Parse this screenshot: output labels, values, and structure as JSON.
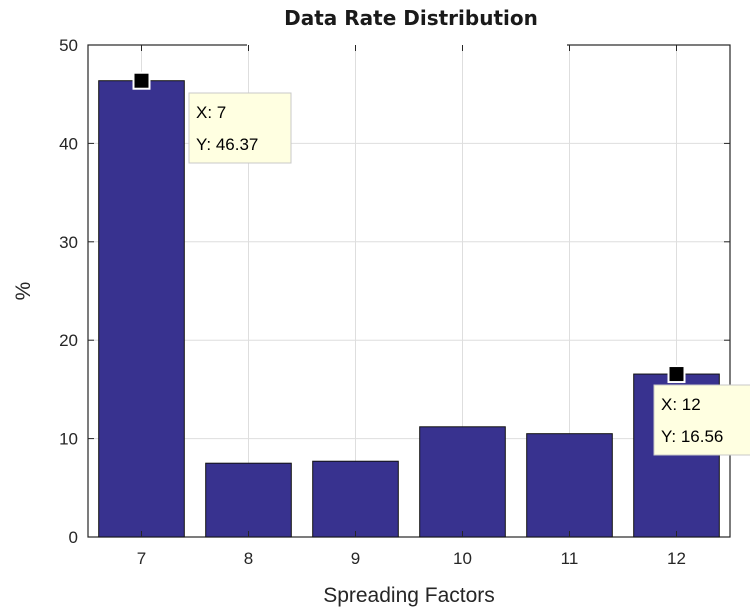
{
  "chart_data": {
    "type": "bar",
    "title": "Data Rate Distribution",
    "xlabel": "Spreading Factors",
    "ylabel": "%",
    "categories": [
      "7",
      "8",
      "9",
      "10",
      "11",
      "12"
    ],
    "values": [
      46.37,
      7.5,
      7.7,
      11.2,
      10.5,
      16.56
    ],
    "ylim": [
      0,
      50
    ],
    "yticks": [
      "0",
      "10",
      "20",
      "30",
      "40",
      "50"
    ],
    "grid": true,
    "datatips": [
      {
        "x_text": "X: 7",
        "y_text": "Y: 46.37",
        "category_index": 0
      },
      {
        "x_text": "X: 12",
        "y_text": "Y: 16.56",
        "category_index": 5
      }
    ],
    "colors": {
      "bar_fill": "#38328f",
      "bar_edge": "#111111",
      "grid": "#dedede",
      "axis": "#262626",
      "tip_fill": "#ffffe1",
      "tip_edge": "#c8c8c8",
      "marker": "#000000"
    }
  }
}
